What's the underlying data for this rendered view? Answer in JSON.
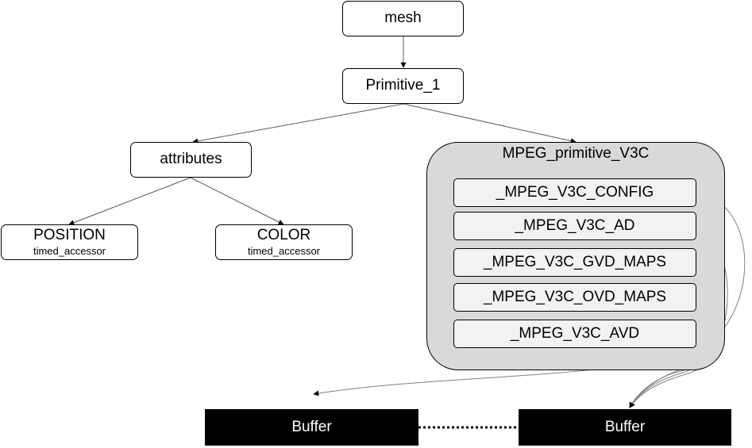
{
  "nodes": {
    "mesh": "mesh",
    "primitive": "Primitive_1",
    "attributes": "attributes",
    "position": {
      "label": "POSITION",
      "sub": "timed_accessor"
    },
    "color": {
      "label": "COLOR",
      "sub": "timed_accessor"
    }
  },
  "v3c": {
    "title": "MPEG_primitive_V3C",
    "items": [
      "_MPEG_V3C_CONFIG",
      "_MPEG_V3C_AD",
      "_MPEG_V3C_GVD_MAPS",
      "_MPEG_V3C_OVD_MAPS",
      "_MPEG_V3C_AVD"
    ]
  },
  "buffers": [
    "Buffer",
    "Buffer"
  ],
  "colors": {
    "group_fill": "#d9d9d9",
    "item_fill": "#f2f2f2",
    "buffer_fill": "#000000",
    "line": "#595959"
  }
}
